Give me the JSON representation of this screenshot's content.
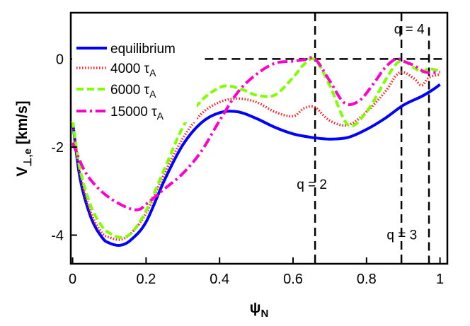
{
  "chart_data": {
    "type": "line",
    "title": "",
    "xlabel": {
      "main": "ψ",
      "sub": "N"
    },
    "ylabel": {
      "main": "V",
      "sub": "⊥,e",
      "unit": " [km/s]"
    },
    "xlim": [
      -0.005,
      1.02
    ],
    "ylim": [
      -4.65,
      1.05
    ],
    "xticks": [
      0,
      0.2,
      0.4,
      0.6,
      0.8,
      1
    ],
    "xtick_labels": [
      "0",
      "0.2",
      "0.4",
      "0.6",
      "0.8",
      "1"
    ],
    "yticks": [
      -4,
      -2,
      0
    ],
    "ytick_labels": [
      "-4",
      "-2",
      "0"
    ],
    "grid": false,
    "legend_position": "top-left",
    "zero_line": {
      "y": 0,
      "x_from": 0.36,
      "x_to": 1.02
    },
    "series": [
      {
        "name": "equilibrium",
        "name_sub": "",
        "color": "#0000ff",
        "dash": "solid",
        "x": [
          0,
          0.02,
          0.05,
          0.08,
          0.1,
          0.13,
          0.16,
          0.2,
          0.25,
          0.3,
          0.35,
          0.4,
          0.45,
          0.5,
          0.55,
          0.6,
          0.65,
          0.7,
          0.75,
          0.8,
          0.85,
          0.9,
          0.95,
          0.98,
          1.0
        ],
        "y": [
          -1.4,
          -2.7,
          -3.6,
          -4.05,
          -4.18,
          -4.23,
          -4.1,
          -3.7,
          -2.75,
          -1.95,
          -1.45,
          -1.22,
          -1.2,
          -1.35,
          -1.55,
          -1.7,
          -1.78,
          -1.82,
          -1.78,
          -1.6,
          -1.35,
          -1.05,
          -0.85,
          -0.7,
          -0.58
        ]
      },
      {
        "name": "4000 τ",
        "name_sub": "A",
        "color": "#ff1a1a",
        "dash": "dot",
        "x": [
          0,
          0.02,
          0.05,
          0.08,
          0.1,
          0.13,
          0.16,
          0.2,
          0.25,
          0.3,
          0.35,
          0.4,
          0.45,
          0.5,
          0.55,
          0.6,
          0.63,
          0.66,
          0.7,
          0.75,
          0.8,
          0.85,
          0.88,
          0.9,
          0.93,
          0.95,
          0.97,
          1.0
        ],
        "y": [
          -1.4,
          -2.6,
          -3.5,
          -3.95,
          -4.05,
          -4.1,
          -3.95,
          -3.5,
          -2.6,
          -1.8,
          -1.25,
          -0.98,
          -0.9,
          -0.98,
          -1.2,
          -1.3,
          -1.12,
          -1.1,
          -1.4,
          -1.5,
          -1.2,
          -0.75,
          -0.38,
          -0.3,
          -0.45,
          -0.6,
          -0.42,
          -0.35
        ]
      },
      {
        "name": "6000 τ",
        "name_sub": "A",
        "color": "#80ff00",
        "dash": "dash",
        "x": [
          0,
          0.02,
          0.05,
          0.08,
          0.1,
          0.13,
          0.16,
          0.2,
          0.25,
          0.3,
          0.35,
          0.4,
          0.43,
          0.47,
          0.5,
          0.55,
          0.6,
          0.63,
          0.66,
          0.7,
          0.75,
          0.8,
          0.85,
          0.88,
          0.9,
          0.93,
          0.95,
          0.97,
          1.0
        ],
        "y": [
          -1.4,
          -2.5,
          -3.35,
          -3.8,
          -3.95,
          -4.05,
          -3.95,
          -3.45,
          -2.5,
          -1.55,
          -0.95,
          -0.65,
          -0.62,
          -0.72,
          -0.82,
          -0.82,
          -0.42,
          -0.12,
          -0.02,
          -0.6,
          -1.5,
          -1.2,
          -0.5,
          -0.12,
          -0.05,
          -0.2,
          -0.3,
          -0.22,
          -0.28
        ]
      },
      {
        "name": "15000 τ",
        "name_sub": "A",
        "color": "#ff00cc",
        "dash": "dashdot",
        "x": [
          0,
          0.03,
          0.06,
          0.1,
          0.15,
          0.18,
          0.2,
          0.25,
          0.3,
          0.35,
          0.4,
          0.45,
          0.5,
          0.55,
          0.6,
          0.63,
          0.66,
          0.7,
          0.74,
          0.78,
          0.82,
          0.85,
          0.88,
          0.9,
          0.93,
          0.96,
          1.0
        ],
        "y": [
          -1.9,
          -2.5,
          -2.85,
          -3.15,
          -3.38,
          -3.42,
          -3.3,
          -2.95,
          -2.6,
          -2.1,
          -1.4,
          -0.75,
          -0.35,
          -0.1,
          -0.05,
          -0.02,
          0.0,
          -0.5,
          -1.0,
          -0.95,
          -0.55,
          -0.2,
          0.0,
          -0.05,
          -0.15,
          -0.3,
          -0.3
        ]
      }
    ],
    "vlines": [
      {
        "x": 0.66,
        "y_from": -4.65,
        "y_to": 1.05,
        "label": "q = 2",
        "label_x": 0.61,
        "label_y": -2.95
      },
      {
        "x": 0.895,
        "y_from": -4.65,
        "y_to": 1.05,
        "label": "q = 3",
        "label_x": 0.855,
        "label_y": -4.1
      },
      {
        "x": 0.97,
        "y_from": -4.65,
        "y_to": 0.72,
        "label": "q = 4",
        "label_x": 0.875,
        "label_y": 0.58
      }
    ]
  }
}
